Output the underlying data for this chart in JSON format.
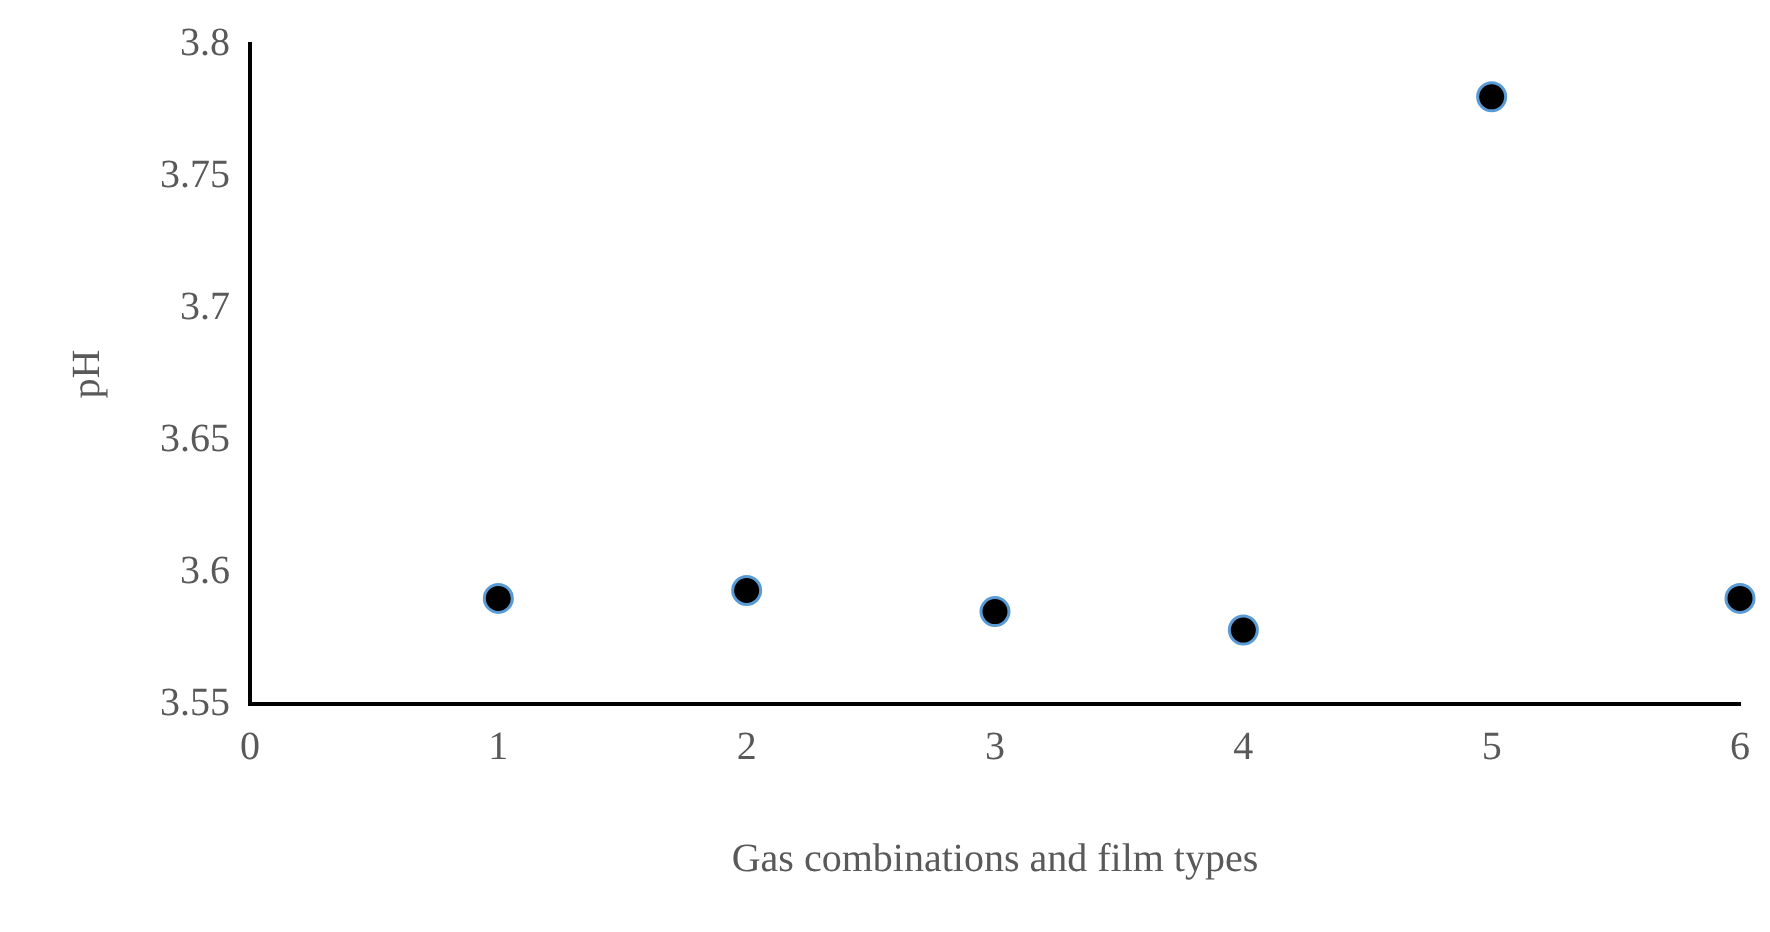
{
  "chart_data": {
    "type": "scatter",
    "xlabel": "Gas combinations and film types",
    "ylabel": "pH",
    "x": [
      1,
      2,
      3,
      4,
      5,
      6
    ],
    "series": [
      {
        "color": "#000000",
        "values": [
          3.59,
          3.593,
          3.585,
          3.578,
          3.78,
          3.59
        ]
      }
    ],
    "xlim": [
      0,
      6
    ],
    "xticks": [
      0,
      1,
      2,
      3,
      4,
      5,
      6
    ],
    "ylim": [
      3.55,
      3.8
    ],
    "yticks": [
      3.55,
      3.6,
      3.65,
      3.7,
      3.75,
      3.8
    ],
    "grid": false,
    "legend": false,
    "marker": "circle"
  }
}
